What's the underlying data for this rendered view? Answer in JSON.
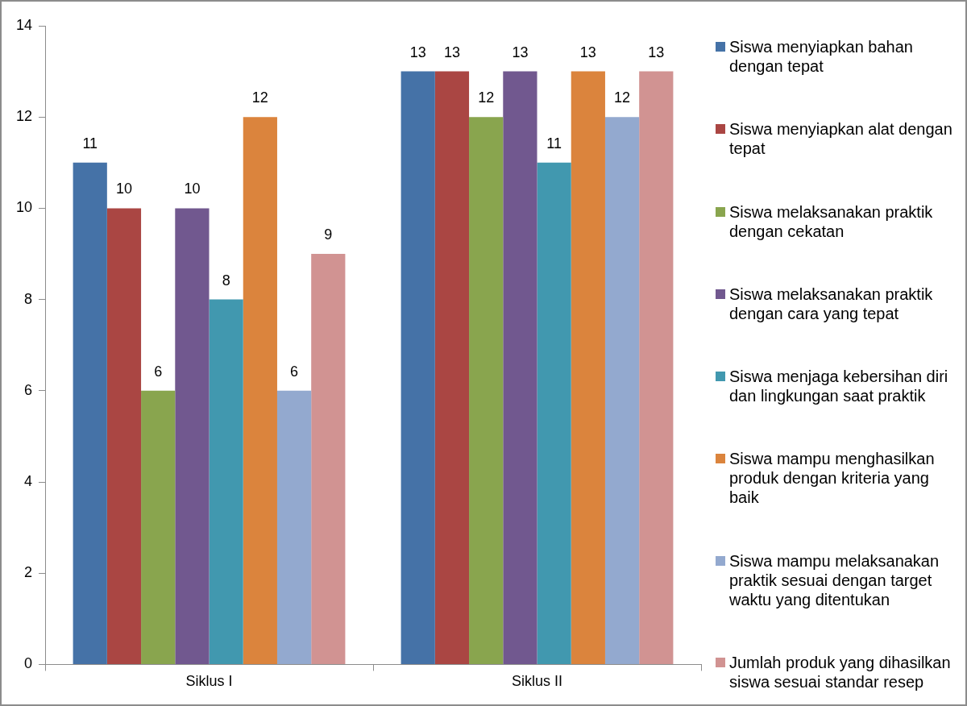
{
  "chart_data": {
    "type": "bar",
    "categories": [
      "Siklus I",
      "Siklus II"
    ],
    "series": [
      {
        "name": "Siswa menyiapkan bahan dengan tepat",
        "color": "#4572a7",
        "values": [
          11,
          13
        ]
      },
      {
        "name": "Siswa menyiapkan alat dengan tepat",
        "color": "#aa4643",
        "values": [
          10,
          13
        ]
      },
      {
        "name": "Siswa melaksanakan praktik dengan cekatan",
        "color": "#89a54e",
        "values": [
          6,
          12
        ]
      },
      {
        "name": "Siswa melaksanakan praktik dengan cara yang tepat",
        "color": "#71588f",
        "values": [
          10,
          13
        ]
      },
      {
        "name": "Siswa menjaga kebersihan diri dan lingkungan saat praktik",
        "color": "#4198af",
        "values": [
          8,
          11
        ]
      },
      {
        "name": "Siswa mampu menghasilkan produk dengan kriteria yang baik",
        "color": "#db843d",
        "values": [
          12,
          13
        ]
      },
      {
        "name": "Siswa mampu melaksanakan praktik sesuai dengan target waktu yang ditentukan",
        "color": "#93a9cf",
        "values": [
          6,
          12
        ]
      },
      {
        "name": "Jumlah produk yang dihasilkan siswa sesuai standar resep",
        "color": "#d19392",
        "values": [
          9,
          13
        ]
      }
    ],
    "ylim": [
      0,
      14
    ],
    "yticks": [
      0,
      2,
      4,
      6,
      8,
      10,
      12,
      14
    ],
    "grid": false,
    "legend": "right",
    "data_labels": true
  }
}
